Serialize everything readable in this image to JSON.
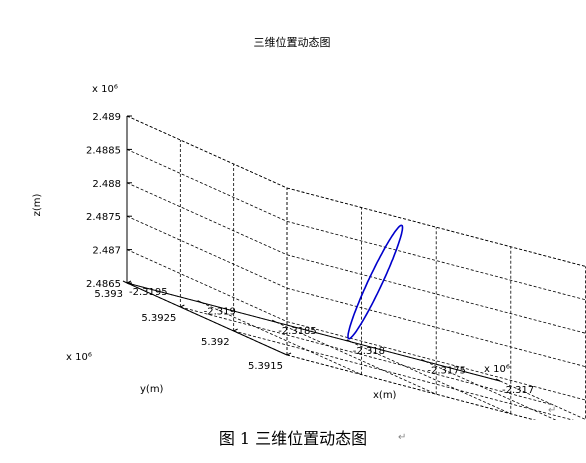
{
  "chart_data": {
    "type": "line",
    "title": "三维位置动态图",
    "xlabel": "x(m)",
    "ylabel": "y(m)",
    "zlabel": "z(m)",
    "xlim": [
      -2.3195,
      -2.317
    ],
    "ylim": [
      5.3915,
      5.393
    ],
    "zlim": [
      2.4865,
      2.489
    ],
    "x_scale_label": "x 10⁶",
    "y_scale_label": "x 10⁶",
    "z_scale_label": "x 10⁶",
    "x_ticks": [
      "-2.3195",
      "-2.319",
      "-2.3185",
      "-2.318",
      "-2.3175",
      "-2.317"
    ],
    "y_ticks": [
      "5.3915",
      "5.392",
      "5.3925",
      "5.393"
    ],
    "z_ticks": [
      "2.4865",
      "2.487",
      "2.4875",
      "2.488",
      "2.4885",
      "2.489"
    ],
    "grid": true,
    "line_color": "#0000cc",
    "series": [
      {
        "shape": "closed-ellipse",
        "x_range": [
          -2.31835,
          -2.31808
        ],
        "y_range": [
          5.39253,
          5.39241
        ],
        "z_range": [
          2.48668,
          2.48862
        ],
        "minor_half_width_frac": 0.055
      }
    ]
  },
  "caption": "图 1  三维位置动态图",
  "para_mark_1": "↵",
  "para_mark_2": "↵"
}
